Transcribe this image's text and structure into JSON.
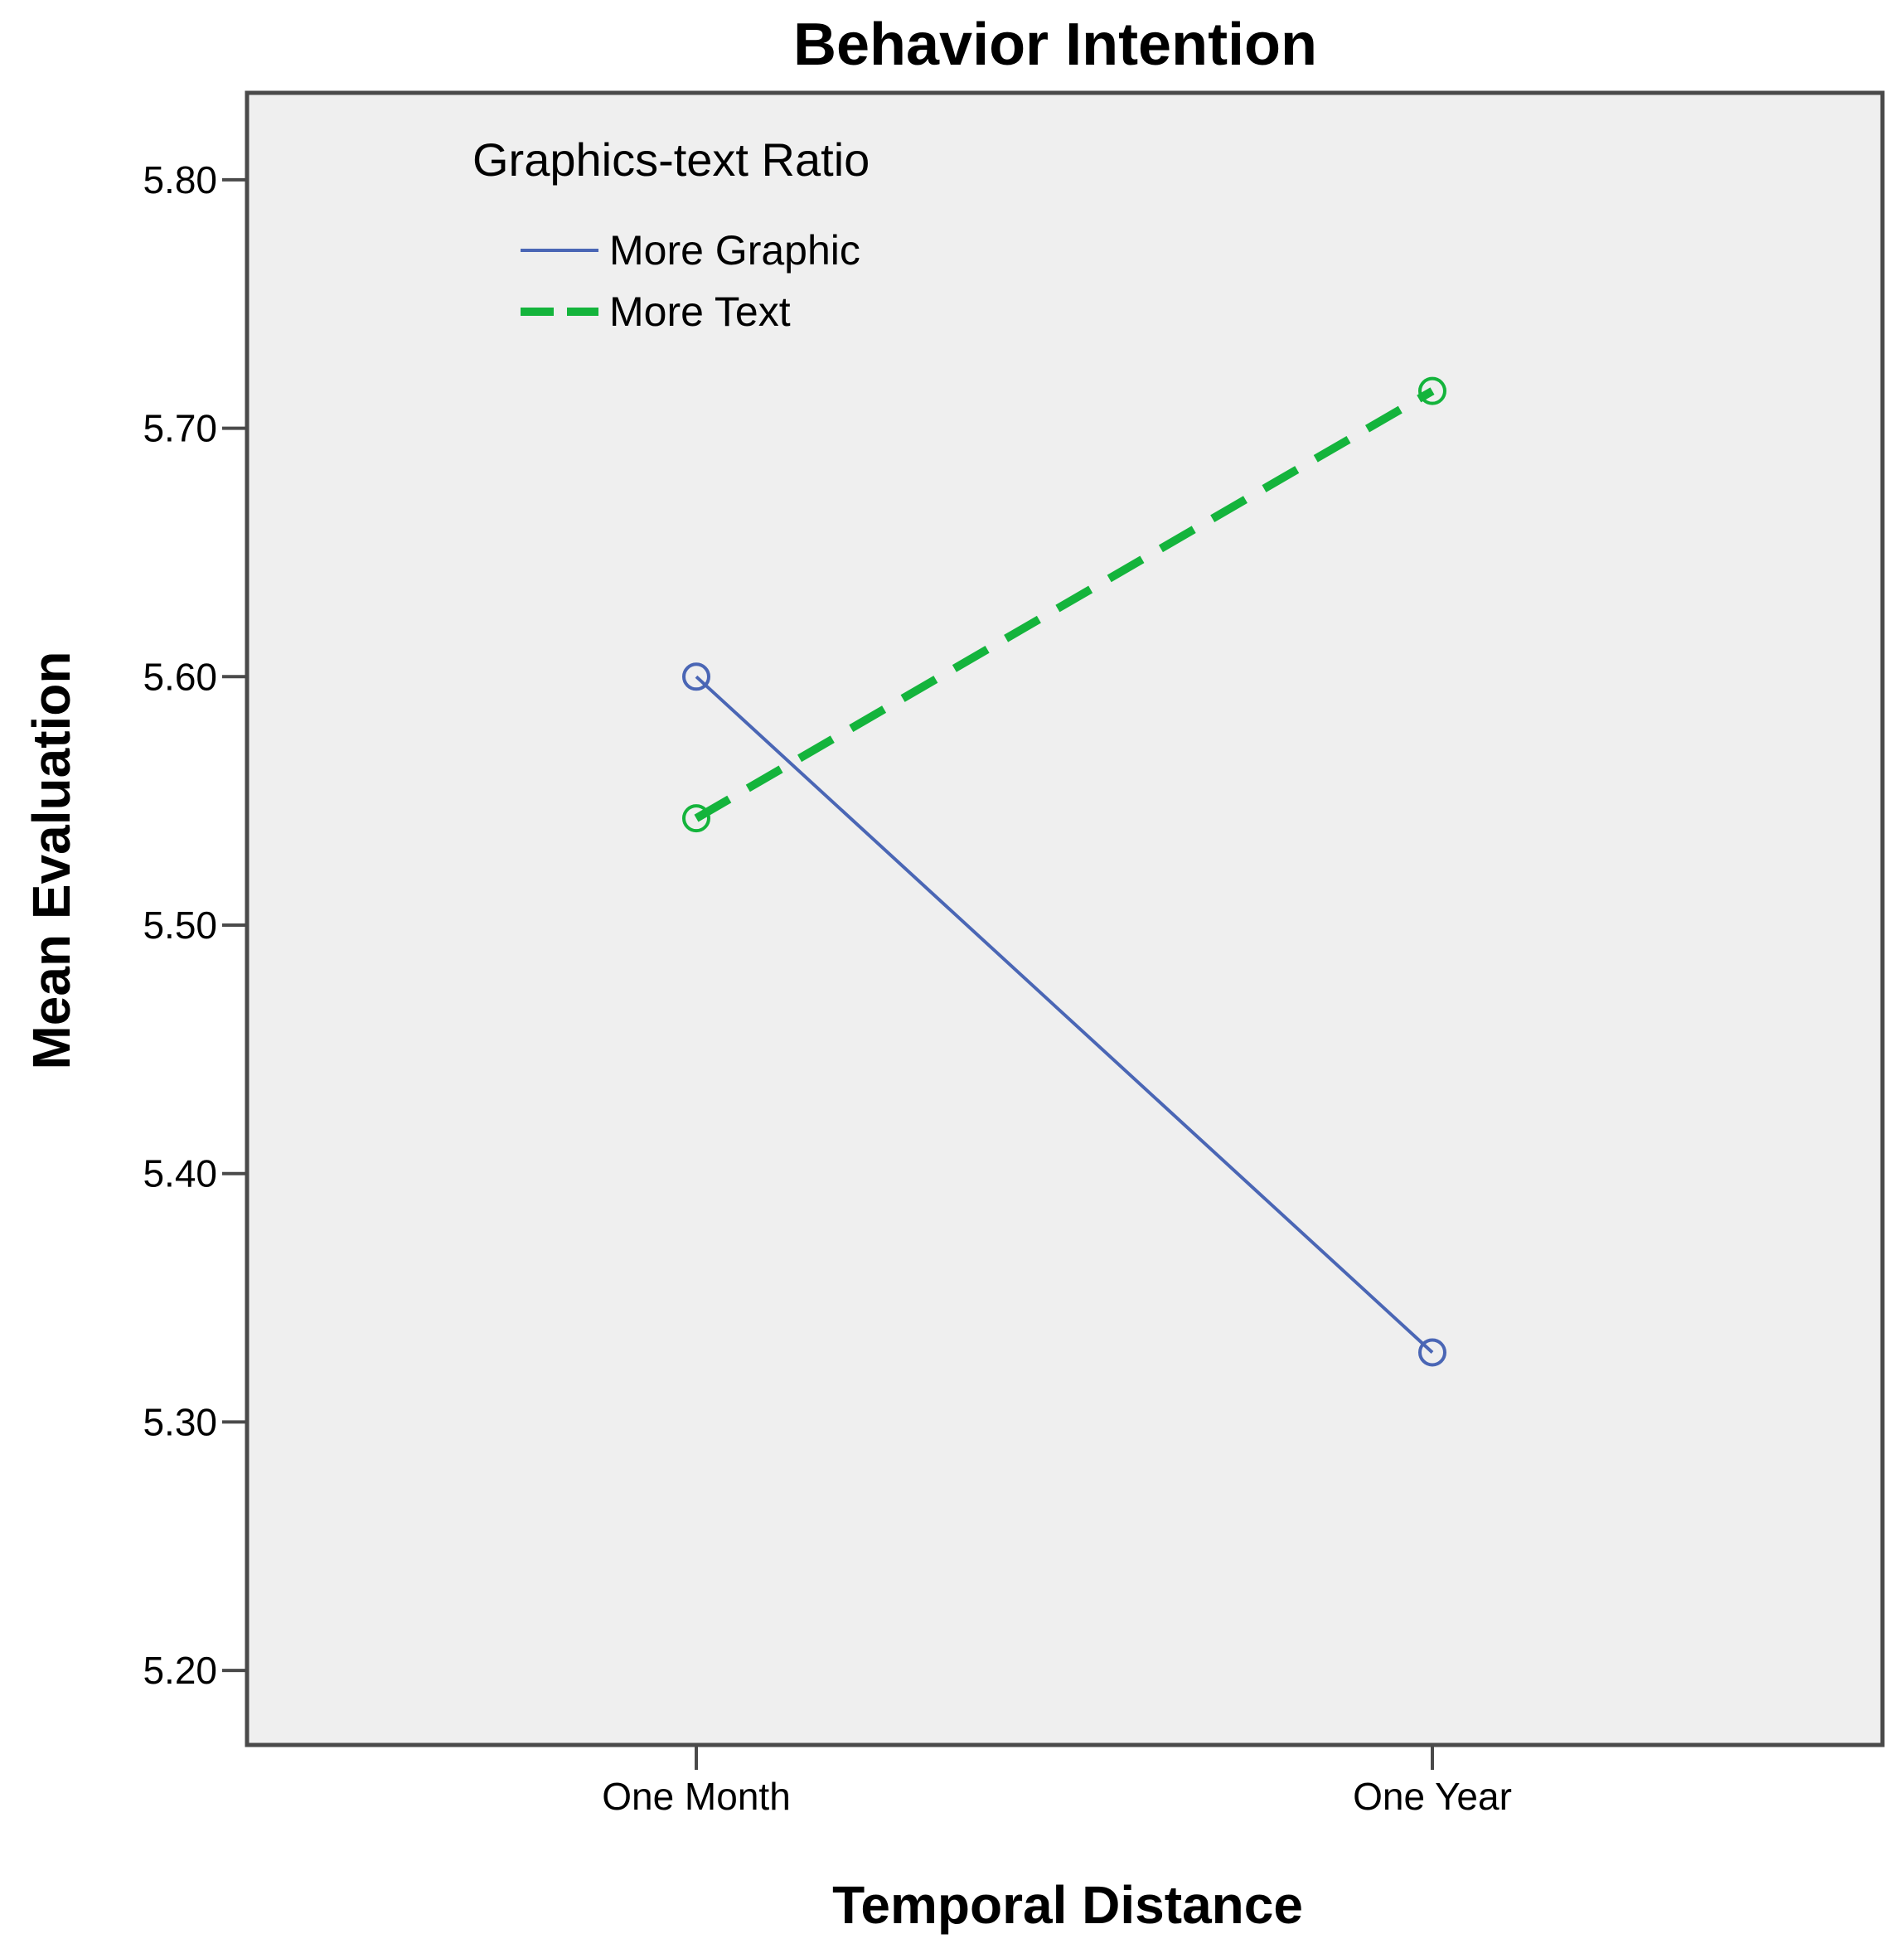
{
  "chart_data": {
    "type": "line",
    "title": "Behavior Intention",
    "xlabel": "Temporal Distance",
    "ylabel": "Mean Evaluation",
    "categories": [
      "One Month",
      "One Year"
    ],
    "ylim": [
      5.17,
      5.835
    ],
    "yticks": [
      "5.20",
      "5.30",
      "5.40",
      "5.50",
      "5.60",
      "5.70",
      "5.80"
    ],
    "legend_title": "Graphics-text Ratio",
    "legend_position": "top-left",
    "grid": false,
    "series": [
      {
        "name": "More Graphic",
        "values": [
          5.6,
          5.328
        ],
        "color": "#4a66b5",
        "style": "solid"
      },
      {
        "name": "More Text",
        "values": [
          5.543,
          5.715
        ],
        "color": "#14b43c",
        "style": "dashed"
      }
    ],
    "plot_background": "#efefef"
  }
}
